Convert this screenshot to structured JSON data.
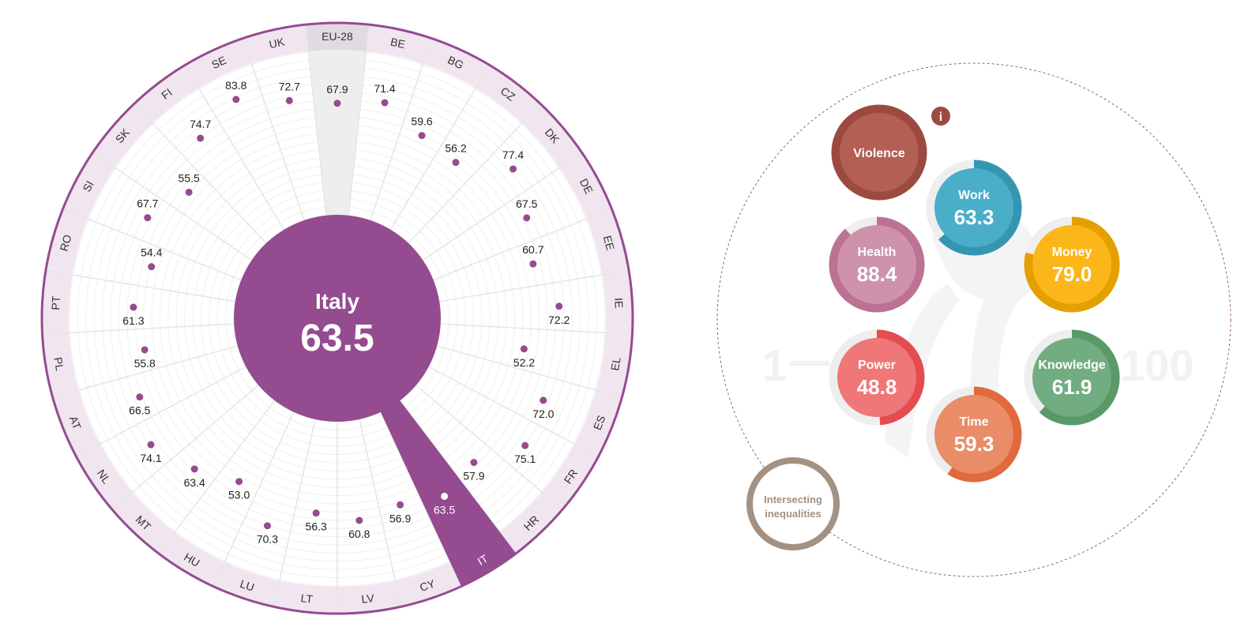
{
  "chart_data": {
    "type": "radial-dot",
    "selected": {
      "name": "Italy",
      "code": "IT",
      "value": "63.5"
    },
    "scale": [
      0,
      100
    ],
    "categories": [
      "EU-28",
      "BE",
      "BG",
      "CZ",
      "DK",
      "DE",
      "EE",
      "IE",
      "EL",
      "ES",
      "FR",
      "HR",
      "IT",
      "CY",
      "LV",
      "LT",
      "LU",
      "HU",
      "MT",
      "NL",
      "AT",
      "PL",
      "PT",
      "RO",
      "SI",
      "SK",
      "FI",
      "SE",
      "UK"
    ],
    "values": [
      67.9,
      71.4,
      59.6,
      56.2,
      77.4,
      67.5,
      60.7,
      72.2,
      52.2,
      72.0,
      75.1,
      57.9,
      63.5,
      56.9,
      60.8,
      56.3,
      70.3,
      53.0,
      63.4,
      74.1,
      66.5,
      55.8,
      61.3,
      54.4,
      67.7,
      55.5,
      74.7,
      83.8,
      72.7
    ],
    "labels": [
      "67.9",
      "71.4",
      "59.6",
      "56.2",
      "77.4",
      "67.5",
      "60.7",
      "72.2",
      "52.2",
      "72.0",
      "75.1",
      "57.9",
      "63.5",
      "56.9",
      "60.8",
      "56.3",
      "70.3",
      "53.0",
      "63.4",
      "74.1",
      "66.5",
      "55.8",
      "61.3",
      "54.4",
      "67.7",
      "55.5",
      "74.7",
      "83.8",
      "72.7"
    ]
  },
  "domains": {
    "scale_min": "1",
    "scale_max": "100",
    "info_icon": "i",
    "items": [
      {
        "key": "violence",
        "label": "Violence",
        "value": null,
        "fill": "#b45f54",
        "ring": "#9c4a40"
      },
      {
        "key": "work",
        "label": "Work",
        "value": "63.3",
        "fill": "#4aaec9",
        "ring": "#3596b2"
      },
      {
        "key": "health",
        "label": "Health",
        "value": "88.4",
        "fill": "#cf92ab",
        "ring": "#bc7294"
      },
      {
        "key": "money",
        "label": "Money",
        "value": "79.0",
        "fill": "#fbb719",
        "ring": "#e4a000"
      },
      {
        "key": "power",
        "label": "Power",
        "value": "48.8",
        "fill": "#ef7777",
        "ring": "#e54c4f"
      },
      {
        "key": "knowledge",
        "label": "Knowledge",
        "value": "61.9",
        "fill": "#72ad82",
        "ring": "#5a9a68"
      },
      {
        "key": "time",
        "label": "Time",
        "value": "59.3",
        "fill": "#e98c68",
        "ring": "#e06a3d"
      }
    ],
    "intersecting": {
      "line1": "Intersecting",
      "line2": "inequalities",
      "color": "#a39182"
    }
  },
  "colors": {
    "accent": "#954b90",
    "band": "#f1e6f0",
    "eu_band": "#e1dbe1",
    "eu_sector": "#eeeeee"
  }
}
